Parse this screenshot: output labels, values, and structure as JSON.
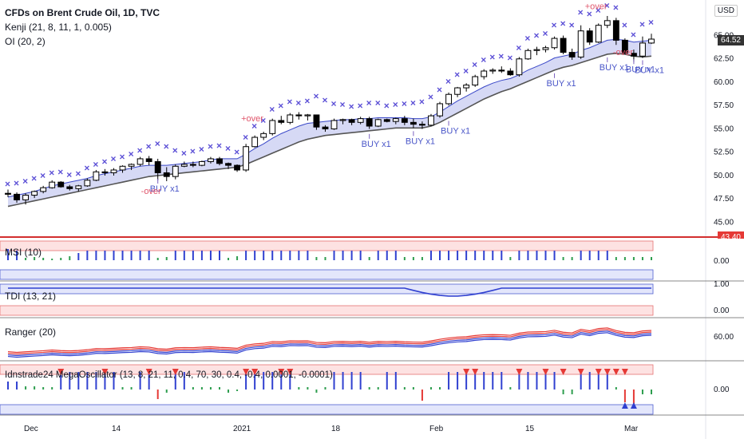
{
  "header": {
    "title": "CFDs on Brent Crude Oil, 1D, TVC",
    "indicator_1": "Kenji (21, 8, 11, 1, 0.005)",
    "indicator_2": "OI (20, 2)",
    "currency": "USD"
  },
  "price_axis": {
    "ticks": [
      "65.00",
      "62.50",
      "60.00",
      "57.50",
      "55.00",
      "52.50",
      "50.00",
      "47.50",
      "45.00"
    ],
    "last_price": "64.52",
    "red_tag": "43.40"
  },
  "time_axis": {
    "ticks": [
      "Dec",
      "14",
      "2021",
      "18",
      "Feb",
      "15",
      "Mar"
    ]
  },
  "panes": {
    "msi": {
      "label": "MSI (10)",
      "tick": "0.00"
    },
    "tdi": {
      "label": "TDI (13, 21)",
      "tick_top": "1.00",
      "tick_bottom": "0.00"
    },
    "ranger": {
      "label": "Ranger (20)",
      "tick": "60.00"
    },
    "mega": {
      "label": "Idnstrade24 MegaOscillator (13, 8, 21, 11, 0.4, 70, 30, 0.4, -0.4, 0.0001, -0.0001)",
      "tick": "0.00"
    }
  },
  "annotations": {
    "over_plus": "+over",
    "over_minus": "-over",
    "buy": "BUY x1"
  },
  "colors": {
    "bull_candle": "#ffffff",
    "bear_candle": "#000000",
    "band_fill": "#d6d9f5",
    "band_line": "#555555",
    "marker": "#5b4fd6",
    "buy_text": "#4a56c8",
    "over_text": "#e0556b",
    "red": "#e53935",
    "blue": "#3040d0",
    "green": "#2e9e4f"
  },
  "chart_data": {
    "type": "candlestick",
    "title": "CFDs on Brent Crude Oil, 1D, TVC",
    "ylim": [
      43.4,
      67.0
    ],
    "ohlc": [
      [
        48.0,
        48.4,
        47.6,
        47.9
      ],
      [
        47.9,
        48.1,
        47.0,
        47.3
      ],
      [
        47.3,
        48.0,
        46.8,
        47.8
      ],
      [
        47.8,
        48.3,
        47.5,
        48.2
      ],
      [
        48.2,
        48.8,
        48.0,
        48.6
      ],
      [
        48.6,
        49.4,
        48.5,
        49.2
      ],
      [
        49.2,
        49.3,
        48.6,
        48.7
      ],
      [
        48.7,
        48.9,
        48.3,
        48.5
      ],
      [
        48.5,
        48.9,
        48.2,
        48.8
      ],
      [
        48.8,
        49.6,
        48.7,
        49.4
      ],
      [
        49.4,
        50.5,
        49.3,
        50.3
      ],
      [
        50.3,
        50.6,
        49.9,
        50.2
      ],
      [
        50.2,
        50.7,
        49.9,
        50.5
      ],
      [
        50.5,
        51.0,
        50.2,
        50.9
      ],
      [
        50.9,
        51.2,
        50.5,
        51.1
      ],
      [
        51.1,
        51.9,
        50.9,
        51.7
      ],
      [
        51.7,
        52.0,
        51.0,
        51.4
      ],
      [
        51.4,
        51.7,
        49.4,
        50.2
      ],
      [
        50.2,
        50.8,
        49.3,
        49.8
      ],
      [
        49.8,
        51.1,
        49.5,
        50.9
      ],
      [
        50.9,
        51.4,
        50.8,
        51.1
      ],
      [
        51.1,
        51.4,
        50.8,
        51.0
      ],
      [
        51.0,
        51.5,
        50.9,
        51.4
      ],
      [
        51.4,
        51.9,
        51.2,
        51.7
      ],
      [
        51.7,
        51.9,
        51.0,
        51.2
      ],
      [
        51.2,
        51.3,
        50.6,
        51.0
      ],
      [
        51.0,
        51.1,
        50.3,
        50.5
      ],
      [
        50.5,
        53.3,
        50.3,
        53.0
      ],
      [
        53.0,
        54.2,
        52.9,
        54.0
      ],
      [
        54.0,
        54.6,
        53.7,
        54.4
      ],
      [
        54.4,
        56.0,
        54.2,
        55.8
      ],
      [
        55.8,
        56.3,
        55.4,
        55.6
      ],
      [
        55.6,
        56.6,
        55.4,
        56.4
      ],
      [
        56.4,
        56.7,
        55.9,
        56.3
      ],
      [
        56.3,
        56.5,
        55.8,
        56.4
      ],
      [
        56.4,
        56.4,
        54.8,
        55.1
      ],
      [
        55.1,
        55.3,
        54.6,
        54.9
      ],
      [
        54.9,
        56.0,
        54.8,
        55.8
      ],
      [
        55.8,
        56.0,
        55.4,
        55.9
      ],
      [
        55.9,
        56.0,
        55.3,
        55.6
      ],
      [
        55.6,
        56.2,
        55.4,
        56.0
      ],
      [
        56.0,
        56.2,
        54.9,
        55.2
      ],
      [
        55.2,
        56.0,
        55.1,
        55.9
      ],
      [
        55.9,
        56.0,
        55.6,
        55.7
      ],
      [
        55.7,
        56.1,
        55.4,
        56.0
      ],
      [
        56.0,
        56.3,
        55.3,
        55.6
      ],
      [
        55.6,
        56.0,
        55.0,
        55.4
      ],
      [
        55.4,
        55.7,
        54.9,
        55.3
      ],
      [
        55.3,
        56.5,
        55.2,
        56.3
      ],
      [
        56.3,
        57.8,
        56.1,
        57.6
      ],
      [
        57.6,
        58.8,
        57.4,
        58.6
      ],
      [
        58.6,
        59.4,
        58.3,
        59.3
      ],
      [
        59.3,
        59.8,
        58.9,
        59.6
      ],
      [
        59.6,
        60.7,
        59.4,
        60.5
      ],
      [
        60.5,
        61.3,
        60.2,
        61.1
      ],
      [
        61.1,
        61.4,
        60.8,
        61.2
      ],
      [
        61.2,
        61.6,
        60.9,
        61.1
      ],
      [
        61.1,
        61.4,
        60.6,
        60.7
      ],
      [
        60.7,
        62.6,
        60.5,
        62.4
      ],
      [
        62.4,
        63.5,
        62.3,
        63.3
      ],
      [
        63.3,
        63.7,
        62.8,
        63.4
      ],
      [
        63.4,
        63.8,
        63.1,
        63.6
      ],
      [
        63.6,
        64.8,
        63.4,
        64.6
      ],
      [
        64.6,
        64.9,
        62.9,
        63.1
      ],
      [
        63.1,
        63.5,
        62.3,
        62.6
      ],
      [
        62.6,
        66.0,
        62.4,
        65.4
      ],
      [
        65.4,
        65.7,
        63.9,
        64.2
      ],
      [
        64.2,
        66.2,
        64.1,
        66.0
      ],
      [
        66.0,
        67.0,
        65.7,
        66.5
      ],
      [
        66.5,
        66.8,
        63.9,
        64.4
      ],
      [
        64.4,
        64.6,
        62.9,
        63.0
      ],
      [
        63.0,
        63.4,
        62.1,
        62.7
      ],
      [
        62.7,
        64.8,
        62.5,
        64.1
      ],
      [
        64.1,
        65.1,
        64.0,
        64.52
      ]
    ],
    "band_upper": [
      47.6,
      47.8,
      48.0,
      48.2,
      48.5,
      48.8,
      49.0,
      49.2,
      49.4,
      49.6,
      49.9,
      50.1,
      50.3,
      50.5,
      50.7,
      50.9,
      51.0,
      51.0,
      51.0,
      51.1,
      51.2,
      51.3,
      51.4,
      51.6,
      51.7,
      51.7,
      51.7,
      52.2,
      52.8,
      53.3,
      53.9,
      54.4,
      54.8,
      55.2,
      55.5,
      55.6,
      55.7,
      55.8,
      55.9,
      55.9,
      56.0,
      56.0,
      56.1,
      56.1,
      56.1,
      56.1,
      56.0,
      56.0,
      56.2,
      56.7,
      57.3,
      57.9,
      58.4,
      58.9,
      59.4,
      59.8,
      60.1,
      60.3,
      60.7,
      61.2,
      61.6,
      62.0,
      62.5,
      62.7,
      62.9,
      63.3,
      63.6,
      64.0,
      64.4,
      64.5,
      64.4,
      64.2,
      64.3,
      64.4
    ],
    "band_lower": [
      46.6,
      46.8,
      47.0,
      47.2,
      47.4,
      47.6,
      47.8,
      48.0,
      48.2,
      48.4,
      48.6,
      48.8,
      49.0,
      49.2,
      49.4,
      49.6,
      49.8,
      49.9,
      50.0,
      50.1,
      50.2,
      50.3,
      50.4,
      50.5,
      50.6,
      50.7,
      50.8,
      51.1,
      51.5,
      51.9,
      52.3,
      52.7,
      53.1,
      53.5,
      53.8,
      54.0,
      54.2,
      54.3,
      54.4,
      54.5,
      54.6,
      54.7,
      54.8,
      54.9,
      55.0,
      55.0,
      55.0,
      55.0,
      55.2,
      55.6,
      56.1,
      56.6,
      57.1,
      57.6,
      58.1,
      58.5,
      58.9,
      59.2,
      59.6,
      60.0,
      60.4,
      60.8,
      61.2,
      61.5,
      61.7,
      62.0,
      62.3,
      62.6,
      62.9,
      63.0,
      62.9,
      62.7,
      62.6,
      62.7
    ],
    "markers_above": [
      49.0,
      49.1,
      49.3,
      49.6,
      49.9,
      50.2,
      50.3,
      50.0,
      50.1,
      50.7,
      51.1,
      51.4,
      51.7,
      51.9,
      52.2,
      52.6,
      53.0,
      53.3,
      53.0,
      52.6,
      52.3,
      52.5,
      52.7,
      53.0,
      53.1,
      52.8,
      52.4,
      54.0,
      55.2,
      55.8,
      57.0,
      57.4,
      57.8,
      57.7,
      57.9,
      58.4,
      58.0,
      57.6,
      57.5,
      57.3,
      57.4,
      57.7,
      57.7,
      57.4,
      57.5,
      57.6,
      57.7,
      57.8,
      58.3,
      59.1,
      60.0,
      60.7,
      61.1,
      61.8,
      62.3,
      62.6,
      62.7,
      62.5,
      63.6,
      64.6,
      64.9,
      65.1,
      66.0,
      66.2,
      66.0,
      67.4,
      67.2,
      67.6,
      68.1,
      67.9,
      66.0,
      65.0,
      66.1,
      66.3
    ]
  }
}
